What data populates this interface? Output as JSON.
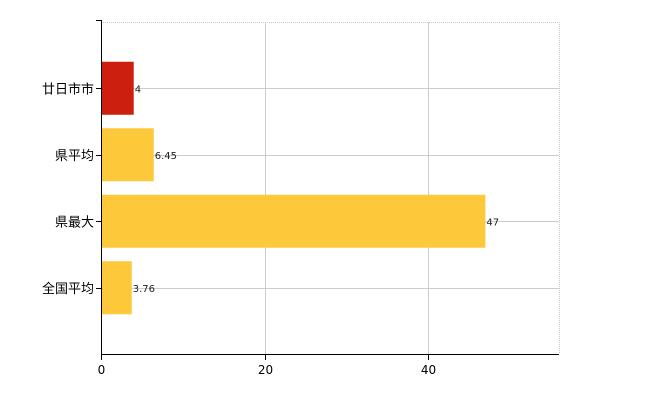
{
  "chart_data": {
    "type": "bar",
    "orientation": "horizontal",
    "categories": [
      "廿日市市",
      "県平均",
      "県最大",
      "全国平均"
    ],
    "values": [
      4,
      6.45,
      47,
      3.76
    ],
    "value_labels": [
      "4",
      "6.45",
      "47",
      "3.76"
    ],
    "bar_colors": [
      "#cc1f0f",
      "#fdc93a",
      "#fdc93a",
      "#fdc93a"
    ],
    "xlim": [
      0,
      56
    ],
    "x_ticks": [
      0,
      20,
      40
    ],
    "x_tick_labels": [
      "0",
      "20",
      "40"
    ],
    "grid": true,
    "legend": "none",
    "title": "",
    "xlabel": "",
    "ylabel": ""
  }
}
